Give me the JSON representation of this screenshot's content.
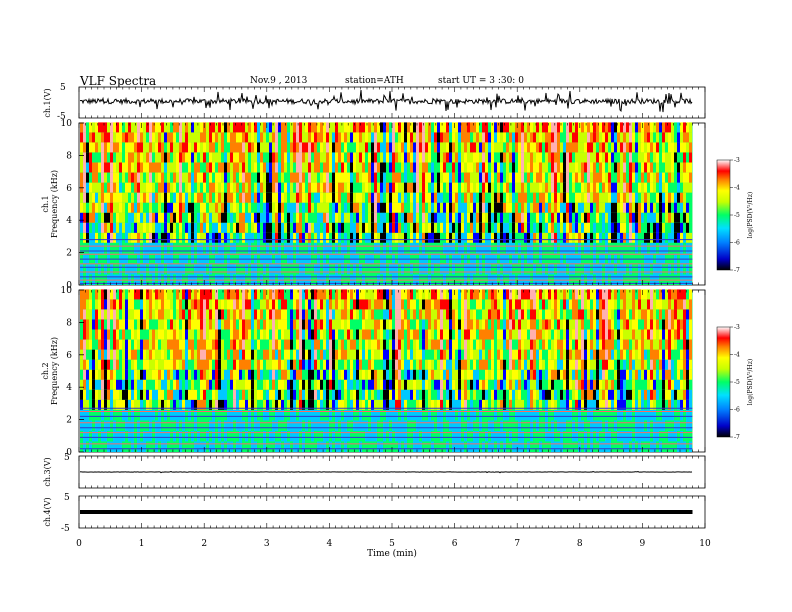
{
  "header": {
    "title": "VLF  Spectra",
    "date": "Nov.9  , 2013",
    "station": "station=ATH",
    "start": "start  UT =   3  :30: 0"
  },
  "chart_data": [
    {
      "type": "line",
      "panel": "ch1-waveform",
      "ylabel": "ch.1(V)",
      "ylim": [
        -5,
        5
      ],
      "yticks": [
        "5",
        "-5"
      ],
      "xlim": [
        0,
        10
      ],
      "baseline_v": 0.4,
      "end_min": 9.8,
      "color": "#000000"
    },
    {
      "type": "heatmap",
      "panel": "ch1-spectrogram",
      "ylabel_ch": "ch.1",
      "ylabel": "Frequency  (kHz)",
      "ylim": [
        0,
        10
      ],
      "yticks": [
        "0",
        "2",
        "4",
        "6",
        "8",
        "10"
      ],
      "xlim": [
        0,
        10
      ],
      "end_min": 9.8,
      "colorbar": {
        "label": "log(PSD(V²/Hz)",
        "range": [
          -7,
          -3
        ],
        "ticks": [
          "-3",
          "-4",
          "-5",
          "-6",
          "-7"
        ]
      },
      "horizontal_lines_khz": [
        0.1,
        0.3,
        0.5,
        0.8,
        1.1,
        1.3,
        1.6,
        1.9,
        2.1,
        2.4,
        2.8
      ]
    },
    {
      "type": "heatmap",
      "panel": "ch2-spectrogram",
      "ylabel_ch": "ch.2",
      "ylabel": "Frequency  (kHz)",
      "ylim": [
        0,
        10
      ],
      "yticks": [
        "0",
        "2",
        "4",
        "6",
        "8",
        "10"
      ],
      "xlim": [
        0,
        10
      ],
      "end_min": 9.8,
      "colorbar": {
        "label": "log(PSD(V²/Hz)",
        "range": [
          -7,
          -3
        ],
        "ticks": [
          "-3",
          "-4",
          "-5",
          "-6",
          "-7"
        ]
      },
      "horizontal_lines_khz": [
        0.2,
        0.5,
        0.9,
        1.2,
        1.5,
        1.8,
        2.2,
        2.5,
        2.7
      ]
    },
    {
      "type": "line",
      "panel": "ch3-waveform",
      "ylabel": "ch.3(V)",
      "ylim": [
        -5,
        5
      ],
      "yticks": [
        "5"
      ],
      "xlim": [
        0,
        10
      ],
      "baseline_v": 0,
      "end_min": 9.8,
      "color": "#000000"
    },
    {
      "type": "line",
      "panel": "ch4-waveform",
      "ylabel": "ch.4(V)",
      "ylim": [
        -5,
        5
      ],
      "yticks": [
        "5",
        "-5"
      ],
      "xlim": [
        0,
        10
      ],
      "baseline_v": 0,
      "end_min": 9.8,
      "color": "#000000"
    }
  ],
  "xaxis": {
    "label": "Time  (min)",
    "ticks": [
      "0",
      "1",
      "2",
      "3",
      "4",
      "5",
      "6",
      "7",
      "8",
      "9",
      "10"
    ]
  },
  "colors": {
    "colormap": [
      "#000000",
      "#0000ff",
      "#00c8ff",
      "#00ff66",
      "#c8ff00",
      "#ffff00",
      "#ff8000",
      "#ff0000",
      "#ffb0b0",
      "#ffffff"
    ]
  }
}
